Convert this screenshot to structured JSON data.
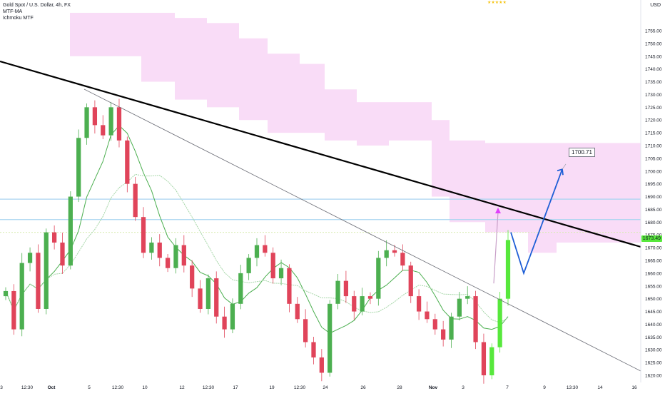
{
  "legend": {
    "symbol": "Gold Spot / U.S. Dollar, 4h, FX",
    "indicator1": "MTF-MA",
    "indicator2": "Ichmoku MTF"
  },
  "rating_stars": "★★★★★",
  "currency": "USD",
  "current_price": "1673.49",
  "target_label": "1700.71",
  "colors": {
    "bull": "#4caf50",
    "bull_bright": "#57e83c",
    "bear": "#e0445a",
    "cloud": "#f8d6f6",
    "hline": "#a8d4f0",
    "trend_main": "#000000",
    "ma_dark": "#4caf50",
    "ma_light": "#a5d6a7",
    "projection": "#1f5fd6",
    "marker": "#e040fb"
  },
  "chart_data": {
    "type": "candlestick",
    "title": "Gold Spot / U.S. Dollar, 4h, FX",
    "y_axis": {
      "unit": "USD",
      "range": [
        1617,
        1760
      ],
      "ticks": [
        1620,
        1625,
        1630,
        1635,
        1640,
        1645,
        1650,
        1655,
        1660,
        1665,
        1670,
        1675,
        1680,
        1685,
        1690,
        1695,
        1700,
        1705,
        1710,
        1715,
        1720,
        1725,
        1730,
        1735,
        1740,
        1745,
        1750,
        1755
      ]
    },
    "x_axis": {
      "ticks": [
        "3",
        "12:30",
        "Oct",
        "5",
        "12:30",
        "10",
        "12",
        "12:30",
        "17",
        "19",
        "12:30",
        "24",
        "26",
        "28",
        "Nov",
        "3",
        "7",
        "9",
        "13:30",
        "14",
        "16"
      ]
    },
    "price_series": [
      1653,
      1638,
      1664,
      1668,
      1646,
      1676,
      1672,
      1663,
      1690,
      1713,
      1725,
      1718,
      1714,
      1725,
      1712,
      1695,
      1682,
      1668,
      1672,
      1666,
      1662,
      1671,
      1663,
      1654,
      1646,
      1658,
      1643,
      1638,
      1648,
      1660,
      1666,
      1671,
      1668,
      1658,
      1662,
      1648,
      1642,
      1633,
      1627,
      1621,
      1648,
      1657,
      1651,
      1645,
      1651,
      1650,
      1666,
      1669,
      1668,
      1663,
      1651,
      1645,
      1642,
      1638,
      1634,
      1643,
      1650,
      1651,
      1633,
      1620,
      1631,
      1650,
      1673
    ],
    "current_price": 1673.49,
    "target_price": 1700.71,
    "projection": [
      [
        1673,
        1684
      ],
      [
        1686,
        1660
      ],
      [
        1696,
        1700.71
      ]
    ],
    "horizontal_levels": [
      1689,
      1681,
      1676
    ],
    "cloud": true,
    "grid": false
  }
}
